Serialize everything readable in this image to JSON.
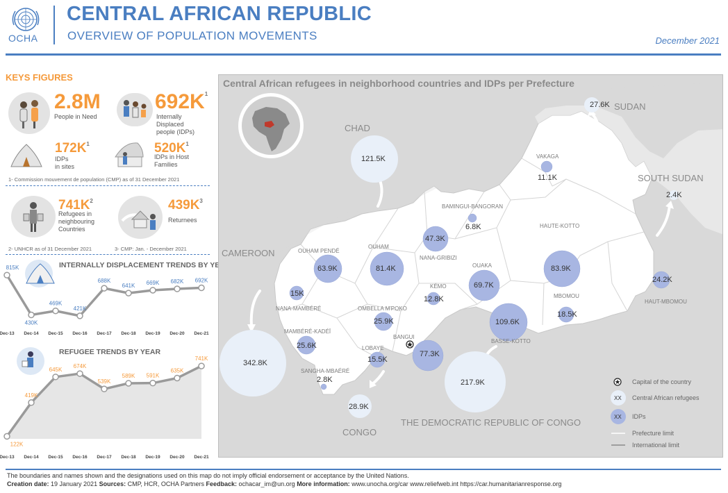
{
  "header": {
    "logo_text": "OCHA",
    "title": "CENTRAL AFRICAN REPUBLIC",
    "subtitle": "OVERVIEW OF POPULATION MOVEMENTS",
    "date": "December 2021"
  },
  "key_figures": {
    "title": "KEYS FIGURES",
    "people_in_need": {
      "value": "2.8M",
      "label": "People in Need"
    },
    "idps": {
      "value": "692K",
      "sup": "1",
      "label_1": "Internally",
      "label_2": "Displaced",
      "label_3": "people (IDPs)"
    },
    "idps_sites": {
      "value": "172K",
      "sup": "1",
      "label_1": "IDPs",
      "label_2": "in sites"
    },
    "idps_host": {
      "value": "520K",
      "sup": "1",
      "label_1": "IDPs in Host",
      "label_2": "Families"
    },
    "note_1": "1- Commission mouvement de population (CMP) as of 31 December 2021",
    "refugees": {
      "value": "741K",
      "sup": "2",
      "label_1": "Refugees in",
      "label_2": "neighbouring",
      "label_3": "Countries"
    },
    "returnees": {
      "value": "439K",
      "sup": "3",
      "label": "Returnees"
    },
    "note_2": "2- UNHCR as of 31 December 2021",
    "note_3": "3- CMP: Jan. - December 2021"
  },
  "idp_trend": {
    "title": "INTERNALLY DISPLACEMENT TRENDS BY YEAR",
    "labels": [
      "815K",
      "430K",
      "469K",
      "421K",
      "688K",
      "641K",
      "669K",
      "682K",
      "692K"
    ]
  },
  "refugee_trend": {
    "title": "REFUGEE TRENDS BY YEAR",
    "labels": [
      "122K",
      "419K",
      "645K",
      "674K",
      "539K",
      "589K",
      "591K",
      "635K",
      "741K"
    ]
  },
  "chart_data": [
    {
      "type": "line",
      "title": "INTERNALLY DISPLACEMENT TRENDS BY YEAR",
      "categories": [
        "Dec-13",
        "Dec-14",
        "Dec-15",
        "Dec-16",
        "Dec-17",
        "Dec-18",
        "Dec-19",
        "Dec-20",
        "Dec-21"
      ],
      "values": [
        815,
        430,
        469,
        421,
        688,
        641,
        669,
        682,
        692
      ],
      "ylabel": "thousands",
      "ylim": [
        400,
        830
      ]
    },
    {
      "type": "line",
      "title": "REFUGEE TRENDS BY YEAR",
      "categories": [
        "Dec-13",
        "Dec-14",
        "Dec-15",
        "Dec-16",
        "Dec-17",
        "Dec-18",
        "Dec-19",
        "Dec-20",
        "Dec-21"
      ],
      "values": [
        122,
        419,
        645,
        674,
        539,
        589,
        591,
        635,
        741
      ],
      "ylabel": "thousands",
      "ylim": [
        100,
        760
      ]
    }
  ],
  "map": {
    "title": "Central African refugees in neighborhood countries and IDPs per Prefecture",
    "countries": {
      "chad": "CHAD",
      "sudan": "SUDAN",
      "south_sudan": "SOUTH SUDAN",
      "cameroon": "CAMEROON",
      "drc": "THE DEMOCRATIC REPUBLIC OF CONGO",
      "congo": "CONGO"
    },
    "prefectures": {
      "vakaga": "VAKAGA",
      "bamingui": "BAMINGUI-BANGORAN",
      "haute_kotto": "HAUTE-KOTTO",
      "ouham_pende": "OUHAM PENDÉ",
      "ouham": "OUHAM",
      "nana_gribizi": "NANA-GRIBIZI",
      "ouaka": "OUAKA",
      "kemo": "KÉMO",
      "nana_mambere": "NANA-MAMBÉRÉ",
      "ombella": "OMBELLA M'POKO",
      "mbomou": "MBOMOU",
      "haut_mbomou": "HAUT-MBOMOU",
      "basse_kotto": "BASSE-KOTTO",
      "bangui": "BANGUI",
      "mambere_kadei": "MAMBÉRÉ-KADÉÏ",
      "lobaye": "LOBAYE",
      "sangha": "SANGHA-MBAÉRÉ"
    },
    "idps": {
      "vakaga": "11.1K",
      "bamingui": "6.8K",
      "haute_kotto": "83.9K",
      "ouham_pende": "63.9K",
      "ouham": "81.4K",
      "nana_gribizi": "47.3K",
      "ouaka": "69.7K",
      "kemo": "12.8K",
      "nana_mambere": "15K",
      "ombella": "25.9K",
      "mbomou": "18.5K",
      "haut_mbomou": "24.2K",
      "basse_kotto": "109.6K",
      "bangui": "77.3K",
      "mambere_kadei": "25.6K",
      "lobaye": "15.5K",
      "sangha": "2.8K"
    },
    "refugees": {
      "chad": "121.5K",
      "sudan": "27.6K",
      "south_sudan": "2.4K",
      "cameroon": "342.8K",
      "drc": "217.9K",
      "congo": "28.9K"
    },
    "legend": {
      "capital": "Capital of the country",
      "xx": "XX",
      "refugees": "Central African refugees",
      "idps": "IDPs",
      "prefecture": "Prefecture limit",
      "international": "International limit"
    }
  },
  "footer": {
    "disclaimer": "The boundaries and names shown and the designations used on this map do not imply official endorsement or acceptance by the United Nations.",
    "creation_label": "Creation date:",
    "creation_value": " 19 January 2021 ",
    "sources_label": "Sources:",
    "sources_value": " CMP, HCR, OCHA Partners ",
    "feedback_label": "Feedback:",
    "feedback_value": " ochacar_im@un.org ",
    "more_label": "More information:",
    "more_value": " www.unocha.org/car www.reliefweb.int https://car.humanitarianresponse.org"
  }
}
